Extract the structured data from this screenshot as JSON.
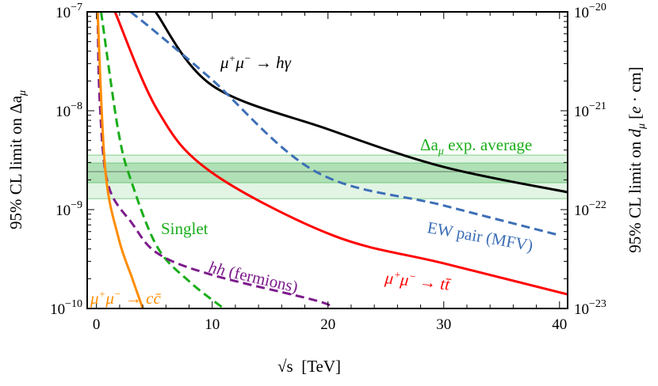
{
  "chart_data": {
    "type": "line",
    "xlabel": "√s  [TeV]",
    "ylabel_left": "95% CL limit on Δa_μ",
    "ylabel_right": "95% CL limit on d_μ  [e · cm]",
    "xlim": [
      -0.8,
      40.7
    ],
    "ylim": [
      1e-10,
      1e-07
    ],
    "yscale": "log",
    "y2lim": [
      1e-23,
      1e-20
    ],
    "x_ticks": [
      0,
      10,
      20,
      30,
      40
    ],
    "y_ticks": [
      {
        "base": "10",
        "exp": "−7"
      },
      {
        "base": "10",
        "exp": "−8"
      },
      {
        "base": "10",
        "exp": "−9"
      },
      {
        "base": "10",
        "exp": "−10"
      }
    ],
    "y2_ticks": [
      {
        "base": "10",
        "exp": "−20"
      },
      {
        "base": "10",
        "exp": "−21"
      },
      {
        "base": "10",
        "exp": "−22"
      },
      {
        "base": "10",
        "exp": "−23"
      }
    ],
    "band": {
      "label": "Δa_μ exp. average",
      "central": 2.42e-09,
      "inner": [
        1.87e-09,
        2.96e-09
      ],
      "outer": [
        1.29e-09,
        3.56e-09
      ],
      "color": "#3cb44b"
    },
    "series": [
      {
        "name": "μ⁺μ⁻ → hγ",
        "color": "#000000",
        "dash": false,
        "points": [
          [
            5.1,
            1e-07
          ],
          [
            10,
            1.8e-08
          ],
          [
            20,
            6.5e-09
          ],
          [
            30,
            2.7e-09
          ],
          [
            40.7,
            1.5e-09
          ]
        ]
      },
      {
        "name": "EW pair (MFV)",
        "color": "#3d6fb6",
        "dash": true,
        "points": [
          [
            2.95,
            1e-07
          ],
          [
            5.3,
            6e-08
          ],
          [
            9.9,
            2.1e-08
          ],
          [
            19,
            2.4e-09
          ],
          [
            30,
            1.1e-09
          ],
          [
            40,
            5.5e-10
          ]
        ]
      },
      {
        "name": "μ⁺μ⁻ → tt̄",
        "color": "#ff0000",
        "dash": false,
        "points": [
          [
            1.6,
            1e-07
          ],
          [
            5.3,
            1e-08
          ],
          [
            9.9,
            2.4e-09
          ],
          [
            20.4,
            5.5e-10
          ],
          [
            30,
            2.86e-10
          ],
          [
            40.7,
            1.39e-10
          ]
        ]
      },
      {
        "name": "Singlet",
        "color": "#1aad1a",
        "dash": true,
        "points": [
          [
            0.4,
            1e-07
          ],
          [
            1.9,
            6.1e-09
          ],
          [
            3.1,
            1.8e-09
          ],
          [
            5.3,
            4.1e-10
          ],
          [
            8.1,
            1.84e-10
          ],
          [
            11,
            1e-10
          ]
        ]
      },
      {
        "name": "hh (fermions)",
        "color": "#7d1b8c",
        "dash": true,
        "points": [
          [
            0.1,
            1e-07
          ],
          [
            0.3,
            1.14e-08
          ],
          [
            1.0,
            1.8e-09
          ],
          [
            3.1,
            7.2e-10
          ],
          [
            5.3,
            3.6e-10
          ],
          [
            9.9,
            2.2e-10
          ],
          [
            19,
            1.2e-10
          ],
          [
            20.4,
            1e-10
          ]
        ]
      },
      {
        "name": "μ⁺μ⁻ → cc̄",
        "color": "#ff8c00",
        "dash": false,
        "points": [
          [
            0.1,
            1e-07
          ],
          [
            0.75,
            2.6e-09
          ],
          [
            1.9,
            5.2e-10
          ],
          [
            3.1,
            2e-10
          ],
          [
            4.0,
            1e-10
          ]
        ]
      }
    ]
  }
}
